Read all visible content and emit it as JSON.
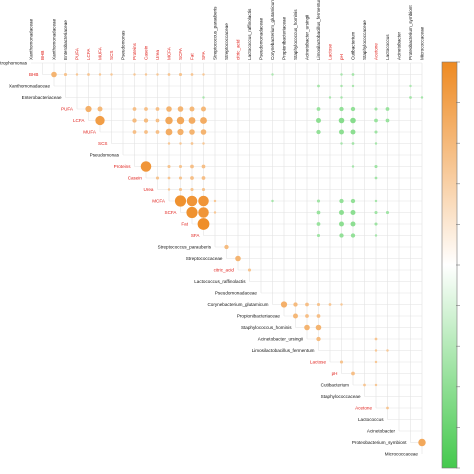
{
  "chart_data": {
    "type": "heatmap",
    "subtype": "upper-triangle correlation plot",
    "variables": [
      {
        "name": "Xanthomonadaceae",
        "colored": false
      },
      {
        "name": "BHB",
        "colored": true
      },
      {
        "name": "Xanthomonadaceae",
        "colored": false
      },
      {
        "name": "Enterobacteriaceae",
        "colored": false
      },
      {
        "name": "PUFA",
        "colored": true
      },
      {
        "name": "LCFA",
        "colored": true
      },
      {
        "name": "MUFA",
        "colored": true
      },
      {
        "name": "SCS",
        "colored": true
      },
      {
        "name": "Pseudomonas",
        "colored": false
      },
      {
        "name": "Proteins",
        "colored": true
      },
      {
        "name": "Casein",
        "colored": true
      },
      {
        "name": "Urea",
        "colored": true
      },
      {
        "name": "MCFA",
        "colored": true
      },
      {
        "name": "SCFA",
        "colored": true
      },
      {
        "name": "Fat",
        "colored": true
      },
      {
        "name": "SFA",
        "colored": true
      },
      {
        "name": "Streptococcus_parauberis",
        "colored": false
      },
      {
        "name": "Streptococcaceae",
        "colored": false
      },
      {
        "name": "citric_acid",
        "colored": true
      },
      {
        "name": "Lactococcus_raffinolactis",
        "colored": false
      },
      {
        "name": "Pseudomonadaceae",
        "colored": false
      },
      {
        "name": "Corynebacterium_glutamicum",
        "colored": false
      },
      {
        "name": "Propionibacteriaceae",
        "colored": false
      },
      {
        "name": "Staphylococcus_hominis",
        "colored": false
      },
      {
        "name": "Acinetobacter_ursingii",
        "colored": false
      },
      {
        "name": "Limosilactobacillus_fermentum",
        "colored": false
      },
      {
        "name": "Lactose",
        "colored": true
      },
      {
        "name": "pH",
        "colored": true
      },
      {
        "name": "Cutibacterium",
        "colored": false
      },
      {
        "name": "Staphylococcaceae",
        "colored": false
      },
      {
        "name": "Acetone",
        "colored": true
      },
      {
        "name": "Lactococcus",
        "colored": false
      },
      {
        "name": "Acinetobacter",
        "colored": false
      },
      {
        "name": "Proteobacterium_symbiont",
        "colored": false
      },
      {
        "name": "Micrococcaceae",
        "colored": false
      }
    ],
    "left_first_row_label": "trophomonas",
    "colorbar": {
      "positive_color": "#ee8a22",
      "negative_color": "#44c94d"
    },
    "label_colors": {
      "default": "#111111",
      "highlight": "#e0201b"
    },
    "cells": [
      [
        1,
        2,
        0.45
      ],
      [
        1,
        3,
        0.25
      ],
      [
        1,
        4,
        0.2
      ],
      [
        1,
        5,
        0.22
      ],
      [
        1,
        6,
        0.2
      ],
      [
        1,
        7,
        0.2
      ],
      [
        1,
        9,
        0.2
      ],
      [
        1,
        10,
        0.2
      ],
      [
        1,
        11,
        0.2
      ],
      [
        1,
        12,
        0.22
      ],
      [
        1,
        13,
        0.25
      ],
      [
        1,
        14,
        0.22
      ],
      [
        1,
        15,
        0.2
      ],
      [
        1,
        21,
        -0.15
      ],
      [
        1,
        27,
        -0.2
      ],
      [
        1,
        28,
        -0.22
      ],
      [
        2,
        25,
        -0.22
      ],
      [
        2,
        27,
        -0.2
      ],
      [
        2,
        28,
        -0.18
      ],
      [
        2,
        33,
        -0.15
      ],
      [
        3,
        15,
        -0.18
      ],
      [
        3,
        26,
        -0.18
      ],
      [
        3,
        27,
        -0.2
      ],
      [
        3,
        33,
        -0.22
      ],
      [
        3,
        34,
        -0.2
      ],
      [
        4,
        5,
        0.5
      ],
      [
        4,
        6,
        0.4
      ],
      [
        4,
        9,
        0.3
      ],
      [
        4,
        10,
        0.3
      ],
      [
        4,
        11,
        0.3
      ],
      [
        4,
        12,
        0.45
      ],
      [
        4,
        13,
        0.45
      ],
      [
        4,
        14,
        0.4
      ],
      [
        4,
        15,
        0.4
      ],
      [
        4,
        25,
        -0.3
      ],
      [
        4,
        27,
        -0.35
      ],
      [
        4,
        28,
        -0.35
      ],
      [
        4,
        30,
        -0.25
      ],
      [
        4,
        31,
        -0.3
      ],
      [
        5,
        6,
        0.75
      ],
      [
        5,
        9,
        0.35
      ],
      [
        5,
        10,
        0.35
      ],
      [
        5,
        11,
        0.3
      ],
      [
        5,
        12,
        0.6
      ],
      [
        5,
        13,
        0.6
      ],
      [
        5,
        14,
        0.55
      ],
      [
        5,
        15,
        0.55
      ],
      [
        5,
        25,
        -0.4
      ],
      [
        5,
        27,
        -0.45
      ],
      [
        5,
        28,
        -0.45
      ],
      [
        5,
        30,
        -0.3
      ],
      [
        5,
        31,
        -0.3
      ],
      [
        6,
        9,
        0.3
      ],
      [
        6,
        10,
        0.3
      ],
      [
        6,
        11,
        0.3
      ],
      [
        6,
        12,
        0.55
      ],
      [
        6,
        13,
        0.5
      ],
      [
        6,
        14,
        0.45
      ],
      [
        6,
        15,
        0.45
      ],
      [
        6,
        25,
        -0.35
      ],
      [
        6,
        27,
        -0.4
      ],
      [
        6,
        28,
        -0.4
      ],
      [
        6,
        30,
        -0.25
      ],
      [
        7,
        12,
        0.2
      ],
      [
        7,
        13,
        0.2
      ],
      [
        7,
        14,
        0.22
      ],
      [
        7,
        15,
        0.2
      ],
      [
        7,
        27,
        -0.2
      ],
      [
        7,
        28,
        -0.22
      ],
      [
        7,
        30,
        -0.2
      ],
      [
        9,
        10,
        0.85
      ],
      [
        9,
        12,
        0.25
      ],
      [
        9,
        13,
        0.25
      ],
      [
        9,
        14,
        0.3
      ],
      [
        9,
        15,
        0.3
      ],
      [
        9,
        28,
        -0.2
      ],
      [
        9,
        30,
        -0.25
      ],
      [
        10,
        11,
        0.25
      ],
      [
        10,
        12,
        0.22
      ],
      [
        10,
        13,
        0.25
      ],
      [
        10,
        14,
        0.3
      ],
      [
        10,
        15,
        0.3
      ],
      [
        10,
        30,
        -0.22
      ],
      [
        11,
        12,
        0.2
      ],
      [
        11,
        13,
        0.25
      ],
      [
        11,
        14,
        0.25
      ],
      [
        11,
        15,
        0.25
      ],
      [
        12,
        13,
        0.9
      ],
      [
        12,
        14,
        0.85
      ],
      [
        12,
        15,
        0.85
      ],
      [
        12,
        16,
        0.2
      ],
      [
        12,
        21,
        -0.2
      ],
      [
        12,
        25,
        -0.25
      ],
      [
        12,
        27,
        -0.35
      ],
      [
        12,
        28,
        -0.35
      ],
      [
        12,
        30,
        -0.2
      ],
      [
        13,
        14,
        0.9
      ],
      [
        13,
        15,
        0.85
      ],
      [
        13,
        16,
        0.2
      ],
      [
        13,
        25,
        -0.3
      ],
      [
        13,
        27,
        -0.4
      ],
      [
        13,
        28,
        -0.4
      ],
      [
        13,
        30,
        -0.25
      ],
      [
        13,
        31,
        -0.25
      ],
      [
        14,
        15,
        0.95
      ],
      [
        14,
        25,
        -0.3
      ],
      [
        14,
        27,
        -0.4
      ],
      [
        14,
        28,
        -0.4
      ],
      [
        14,
        30,
        -0.25
      ],
      [
        15,
        25,
        -0.25
      ],
      [
        15,
        27,
        -0.35
      ],
      [
        15,
        28,
        -0.35
      ],
      [
        15,
        30,
        -0.2
      ],
      [
        16,
        17,
        0.35
      ],
      [
        17,
        18,
        0.45
      ],
      [
        18,
        19,
        0.25
      ],
      [
        21,
        22,
        0.5
      ],
      [
        21,
        23,
        0.35
      ],
      [
        21,
        24,
        0.3
      ],
      [
        21,
        25,
        0.25
      ],
      [
        21,
        26,
        0.22
      ],
      [
        21,
        27,
        0.2
      ],
      [
        22,
        23,
        0.4
      ],
      [
        22,
        24,
        0.3
      ],
      [
        22,
        25,
        0.3
      ],
      [
        23,
        24,
        0.45
      ],
      [
        23,
        25,
        0.45
      ],
      [
        24,
        25,
        0.35
      ],
      [
        24,
        30,
        0.22
      ],
      [
        25,
        30,
        0.2
      ],
      [
        25,
        31,
        0.2
      ],
      [
        26,
        27,
        0.25
      ],
      [
        26,
        30,
        0.2
      ],
      [
        27,
        28,
        0.3
      ],
      [
        28,
        29,
        0.22
      ],
      [
        28,
        30,
        0.2
      ],
      [
        30,
        31,
        0.22
      ],
      [
        33,
        34,
        0.6
      ]
    ]
  }
}
